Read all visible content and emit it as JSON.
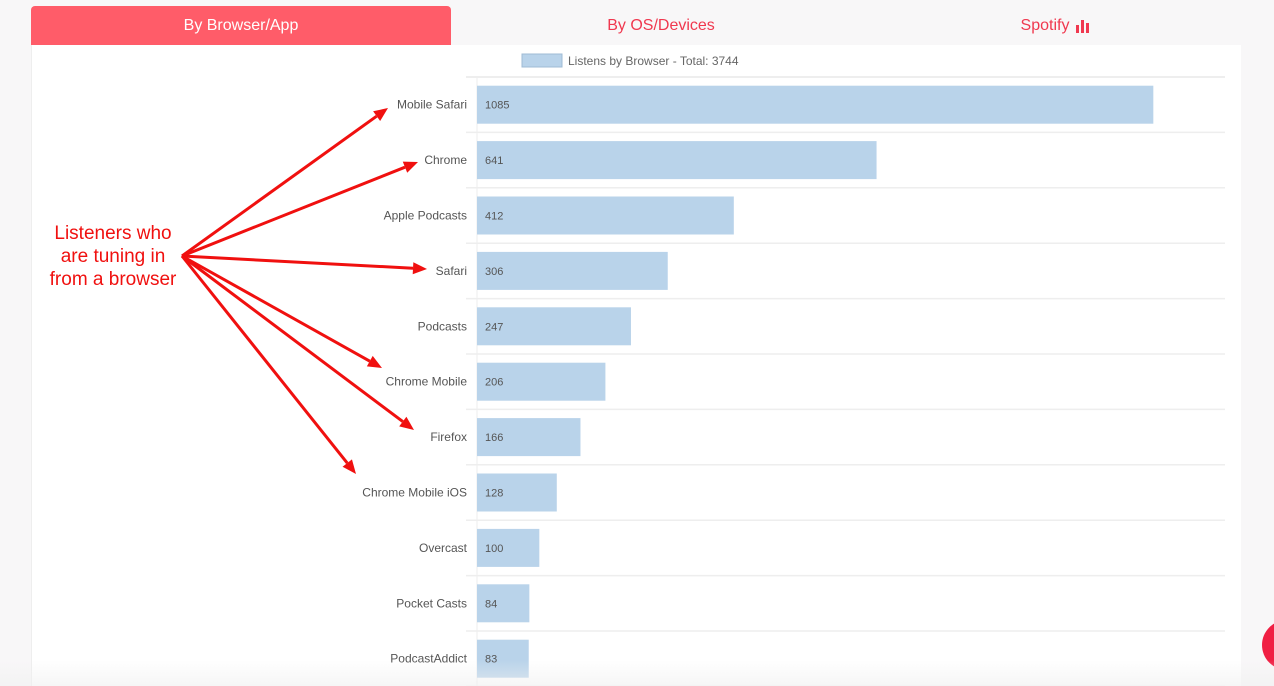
{
  "tabs": [
    {
      "label": "By Browser/App",
      "active": true
    },
    {
      "label": "By OS/Devices",
      "active": false
    },
    {
      "label": "Spotify",
      "icon": "bar-chart-icon",
      "active": false
    }
  ],
  "annotation": {
    "text": "Listeners who are tuning in from a browser",
    "color": "#f0100f"
  },
  "chart_data": {
    "type": "bar",
    "orientation": "horizontal",
    "legend": "Listens by Browser - Total: 3744",
    "legend_position": "top-center",
    "categories": [
      "Mobile Safari",
      "Chrome",
      "Apple Podcasts",
      "Safari",
      "Podcasts",
      "Chrome Mobile",
      "Firefox",
      "Chrome Mobile iOS",
      "Overcast",
      "Pocket Casts",
      "PodcastAddict"
    ],
    "values": [
      1085,
      641,
      412,
      306,
      247,
      206,
      166,
      128,
      100,
      84,
      83
    ],
    "xlim": [
      0,
      1200
    ],
    "bar_color": "#b9d3ea",
    "grid": true
  },
  "arrow_targets": [
    "Mobile Safari",
    "Chrome",
    "Safari",
    "Chrome Mobile",
    "Firefox",
    "Chrome Mobile iOS"
  ]
}
